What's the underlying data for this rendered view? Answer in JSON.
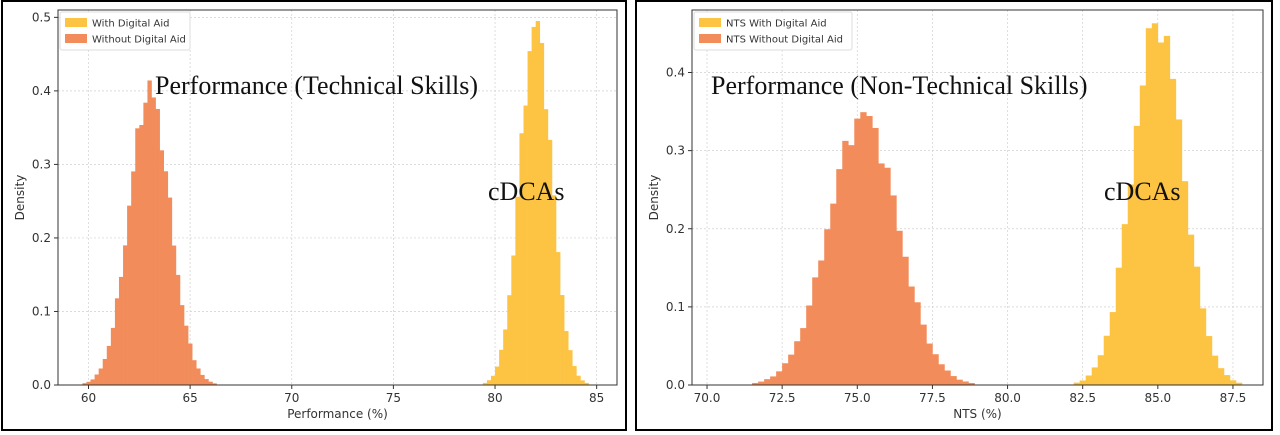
{
  "chart_data": [
    {
      "type": "histogram",
      "xlabel": "Performance (%)",
      "ylabel": "Density",
      "xlim": [
        58.5,
        86
      ],
      "ylim": [
        0,
        0.51
      ],
      "xticks": [
        60,
        65,
        70,
        75,
        80,
        85
      ],
      "yticks": [
        0.0,
        0.1,
        0.2,
        0.3,
        0.4,
        0.5
      ],
      "grid": true,
      "legend_position": "top-left",
      "annotations": [
        "Performance (Technical Skills)",
        "cDCAs"
      ],
      "series": [
        {
          "name": "With Digital Aid",
          "color": "#fdc444",
          "mean": 82.0,
          "std": 0.78,
          "peak": 0.49,
          "range": [
            79.2,
            84.8
          ]
        },
        {
          "name": "Without Digital Aid",
          "color": "#f28c5a",
          "mean": 63.0,
          "std": 1.0,
          "peak": 0.4,
          "range": [
            59.3,
            66.3
          ]
        }
      ]
    },
    {
      "type": "histogram",
      "xlabel": "NTS (%)",
      "ylabel": "Density",
      "xlim": [
        69.5,
        88.5
      ],
      "ylim": [
        0,
        0.48
      ],
      "xticks": [
        70.0,
        72.5,
        75.0,
        77.5,
        80.0,
        82.5,
        85.0,
        87.5
      ],
      "yticks": [
        0.0,
        0.1,
        0.2,
        0.3,
        0.4
      ],
      "grid": true,
      "legend_position": "top-left",
      "annotations": [
        "Performance (Non-Technical Skills)",
        "cDCAs"
      ],
      "series": [
        {
          "name": "NTS With Digital Aid",
          "color": "#fdc444",
          "mean": 85.0,
          "std": 0.85,
          "peak": 0.465,
          "range": [
            82.0,
            88.0
          ]
        },
        {
          "name": "NTS Without Digital Aid",
          "color": "#f28c5a",
          "mean": 75.2,
          "std": 1.15,
          "peak": 0.345,
          "range": [
            71.3,
            79.3
          ]
        }
      ]
    }
  ]
}
